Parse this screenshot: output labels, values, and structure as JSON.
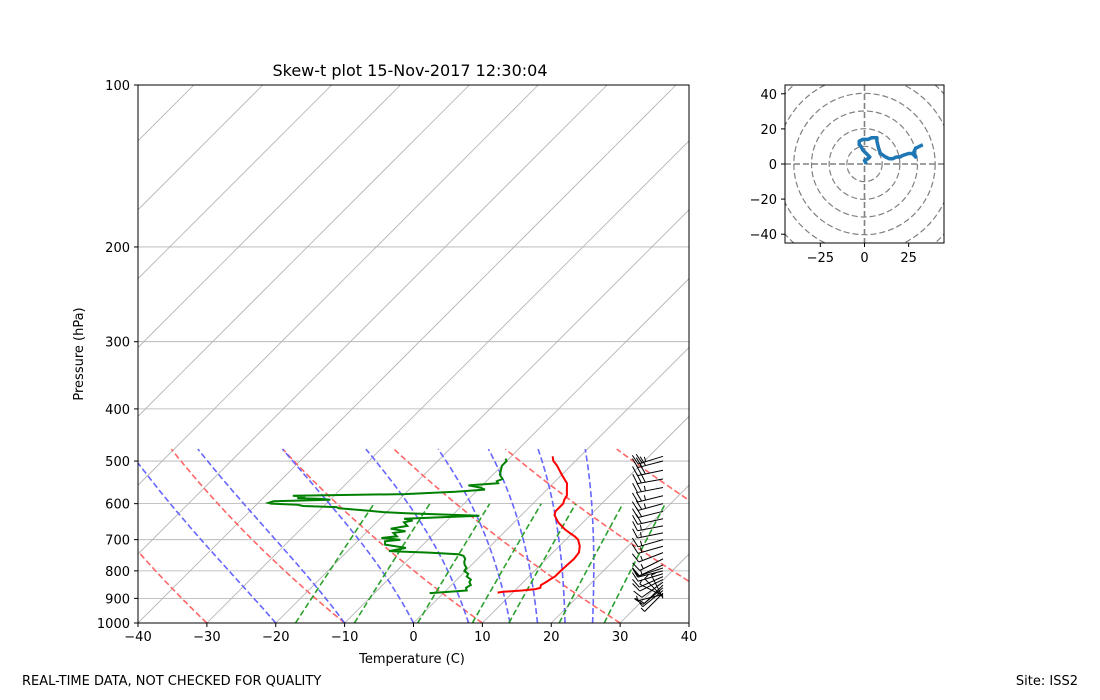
{
  "footer": {
    "disclaimer": "REAL-TIME DATA, NOT CHECKED FOR QUALITY",
    "site": "Site: ISS2"
  },
  "colors": {
    "temperature": "#ff0000",
    "dewpoint": "#008000",
    "dry_adiabat": "#ff6666",
    "moist_adiabat": "#6666ff",
    "mixing_ratio": "#2ca02c",
    "hodograph": "#1f77b4",
    "grid": "#b0b0b0"
  },
  "chart_data": [
    {
      "type": "line",
      "kind": "skew-t",
      "title": "Skew-t plot 15-Nov-2017 12:30:04",
      "xlabel": "Temperature (C)",
      "ylabel": "Pressure (hPa)",
      "xlim": [
        -40,
        40
      ],
      "ylim": [
        1000,
        100
      ],
      "yscale": "log",
      "x_ticks": [
        -40,
        -30,
        -20,
        -10,
        0,
        10,
        20,
        30,
        40
      ],
      "x_tick_labels": [
        "−40",
        "−30",
        "−20",
        "−10",
        "0",
        "10",
        "20",
        "30",
        "40"
      ],
      "y_ticks": [
        100,
        200,
        300,
        400,
        500,
        600,
        700,
        800,
        900,
        1000
      ],
      "y_tick_labels": [
        "100",
        "200",
        "300",
        "400",
        "500",
        "600",
        "700",
        "800",
        "900",
        "1000"
      ],
      "isotherms": [
        -120,
        -110,
        -100,
        -90,
        -80,
        -70,
        -60,
        -50,
        -40,
        -30,
        -20,
        -10,
        0,
        10,
        20,
        30,
        40
      ],
      "dry_adiabats_theta_c": [
        -30,
        -10,
        10,
        30,
        50,
        70
      ],
      "moist_adiabats_start_c": [
        -20,
        -10,
        0,
        8,
        14,
        18,
        22,
        26
      ],
      "mixing_ratios_gkg": [
        1,
        2,
        4,
        7,
        10,
        16,
        24
      ],
      "series": [
        {
          "name": "Temperature",
          "pressure": [
            878,
            875,
            870,
            865,
            860,
            850,
            840,
            830,
            820,
            800,
            780,
            760,
            740,
            720,
            700,
            690,
            680,
            670,
            660,
            650,
            640,
            630,
            620,
            610,
            600,
            590,
            580,
            570,
            560,
            550,
            540,
            530,
            520,
            510,
            500,
            490
          ],
          "values": [
            7.8,
            8.5,
            11.0,
            12.8,
            13.3,
            13.0,
            13.3,
            13.5,
            13.8,
            13.8,
            13.9,
            14.0,
            13.8,
            13.0,
            11.8,
            10.8,
            9.6,
            8.4,
            7.4,
            6.4,
            5.6,
            4.8,
            4.4,
            4.4,
            4.4,
            4.0,
            3.8,
            3.2,
            2.6,
            2.0,
            1.0,
            0.0,
            -1.0,
            -2.0,
            -3.2,
            -4.0
          ]
        },
        {
          "name": "Dewpoint",
          "pressure": [
            880,
            876,
            870,
            860,
            850,
            840,
            830,
            820,
            810,
            800,
            790,
            780,
            770,
            760,
            750,
            745,
            740,
            735,
            725,
            715,
            705,
            700,
            695,
            690,
            680,
            675,
            668,
            660,
            650,
            645,
            640,
            632,
            625,
            622,
            618,
            612,
            609,
            606,
            603,
            600,
            598,
            594,
            590,
            588,
            586,
            583,
            580,
            576,
            570,
            565,
            560,
            555,
            550,
            545,
            540,
            530,
            520,
            510,
            500,
            495
          ],
          "values": [
            -2.0,
            0.0,
            3.0,
            2.5,
            2.8,
            2.2,
            2.0,
            1.0,
            0.8,
            -0.2,
            -0.3,
            -1.0,
            -1.5,
            -1.8,
            -2.5,
            -3.5,
            -8.0,
            -14.0,
            -12.0,
            -15.5,
            -16.0,
            -14.0,
            -17.0,
            -15.0,
            -16.0,
            -14.5,
            -17.0,
            -15.0,
            -16.0,
            -15.0,
            -16.5,
            -6.0,
            -17.0,
            -20.5,
            -23.0,
            -27.5,
            -28.0,
            -33.0,
            -34.0,
            -38.0,
            -38.5,
            -38.0,
            -30.0,
            -31.5,
            -35.0,
            -34.0,
            -36.0,
            -20.0,
            -13.0,
            -9.0,
            -10.0,
            -12.0,
            -8.0,
            -8.5,
            -8.0,
            -9.0,
            -9.5,
            -10.0,
            -10.0,
            -10.5
          ]
        }
      ],
      "wind_barbs": {
        "pressure": [
          900,
          895,
          890,
          885,
          880,
          870,
          860,
          850,
          840,
          830,
          820,
          810,
          800,
          790,
          780,
          760,
          740,
          720,
          700,
          680,
          660,
          640,
          620,
          600,
          580,
          560,
          540,
          520,
          500,
          490
        ],
        "u_kt": [
          2,
          3,
          4,
          4,
          3,
          5,
          6,
          6,
          7,
          8,
          9,
          10,
          12,
          12,
          11,
          12,
          13,
          14,
          14,
          15,
          16,
          18,
          20,
          22,
          24,
          26,
          28,
          28,
          27,
          26
        ],
        "v_kt": [
          -4,
          -3,
          -2,
          1,
          3,
          4,
          5,
          6,
          5,
          4,
          4,
          3,
          3,
          4,
          5,
          6,
          5,
          4,
          4,
          3,
          3,
          4,
          5,
          6,
          6,
          5,
          5,
          6,
          7,
          8
        ]
      }
    },
    {
      "type": "line",
      "kind": "hodograph",
      "xlim": [
        -45,
        45
      ],
      "ylim": [
        -45,
        45
      ],
      "x_ticks": [
        -25,
        0,
        25
      ],
      "x_tick_labels": [
        "−25",
        "0",
        "25"
      ],
      "y_ticks": [
        -40,
        -20,
        0,
        20,
        40
      ],
      "y_tick_labels": [
        "−40",
        "−20",
        "0",
        "20",
        "40"
      ],
      "rings": [
        10,
        20,
        30,
        40,
        50,
        60
      ],
      "series": [
        {
          "name": "Wind",
          "x": [
            1,
            0,
            2,
            3,
            1,
            0,
            -1,
            -2,
            -3,
            -3,
            -1,
            2,
            4,
            6,
            7,
            7,
            8,
            9,
            12,
            14,
            16,
            18,
            20,
            22,
            25,
            27,
            28,
            29,
            28,
            29,
            31,
            33
          ],
          "y": [
            0,
            2,
            3,
            4,
            6,
            7,
            8,
            10,
            11,
            13,
            14,
            14,
            15,
            15,
            15,
            13,
            9,
            6,
            4,
            3,
            3,
            4,
            4,
            5,
            6,
            6,
            5,
            4,
            7,
            9,
            10,
            11
          ]
        }
      ]
    }
  ]
}
